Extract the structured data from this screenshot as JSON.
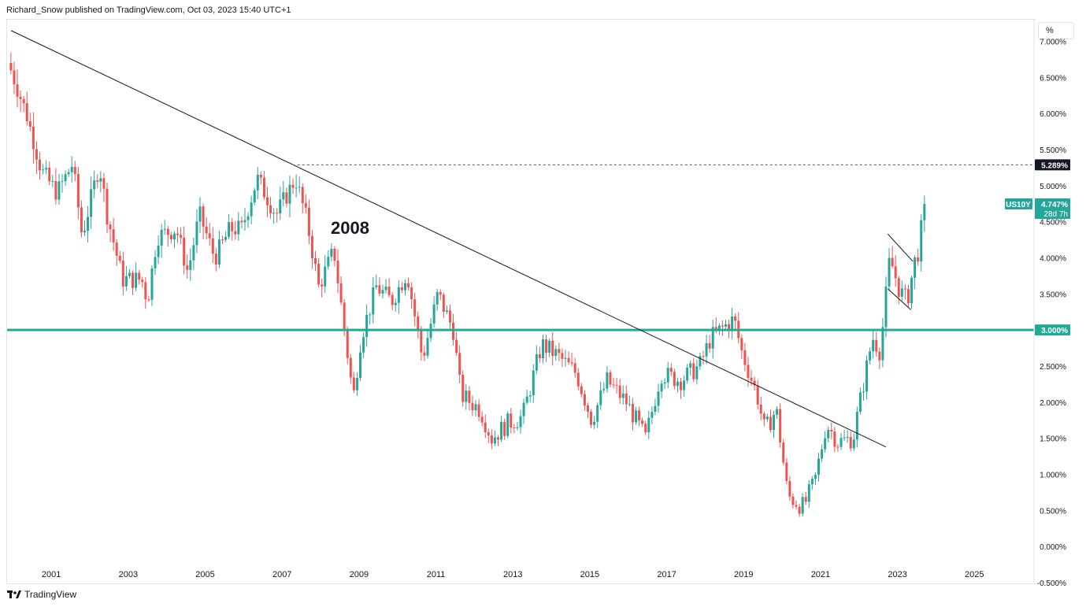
{
  "header": {
    "publisher_line": "Richard_Snow published on TradingView.com, Oct 03, 2023 15:40 UTC+1"
  },
  "toolbar": {
    "percent_label": "%"
  },
  "footer": {
    "brand": "TradingView"
  },
  "colors": {
    "up": "#26a69a",
    "down": "#ef5350",
    "support_line": "#22ab94",
    "text": "#131722",
    "grid_border": "#e0e3eb"
  },
  "chart_data": {
    "type": "candlestick",
    "symbol": "US10Y",
    "interval": "monthly",
    "y_axis": {
      "unit": "%",
      "ticks": [
        "7.000%",
        "6.500%",
        "6.000%",
        "5.500%",
        "5.000%",
        "4.500%",
        "4.000%",
        "3.500%",
        "3.000%",
        "2.500%",
        "2.000%",
        "1.500%",
        "1.000%",
        "0.500%",
        "0.000%",
        "-0.500%"
      ],
      "range": [
        -0.5,
        7.3
      ]
    },
    "x_axis": {
      "ticks": [
        "2001",
        "2003",
        "2005",
        "2007",
        "2009",
        "2011",
        "2013",
        "2015",
        "2017",
        "2019",
        "2021",
        "2023",
        "2025"
      ],
      "range": [
        1999.9,
        2026.6
      ]
    },
    "annotation_text": "2008",
    "horizontal_level": {
      "value": 3.0,
      "label": "3.000%"
    },
    "dashed_level": {
      "value": 5.289,
      "label": "5.289%",
      "from_x": 2007.45
    },
    "last_price": {
      "value": 4.747,
      "label": "4.747%",
      "symbol_label": "US10Y",
      "countdown": "28d 7h"
    },
    "trendline": {
      "from": [
        2000.0,
        7.15
      ],
      "to": [
        2022.75,
        1.38
      ]
    },
    "wedge": {
      "upper": [
        [
          2022.8,
          4.33
        ],
        [
          2023.45,
          3.95
        ]
      ],
      "lower": [
        [
          2022.8,
          3.57
        ],
        [
          2023.4,
          3.28
        ]
      ]
    },
    "anchors": [
      [
        2000.0,
        6.6
      ],
      [
        2000.4,
        6.0
      ],
      [
        2000.8,
        5.2
      ],
      [
        2001.2,
        4.9
      ],
      [
        2001.6,
        5.3
      ],
      [
        2001.85,
        4.3
      ],
      [
        2002.3,
        5.3
      ],
      [
        2002.5,
        4.6
      ],
      [
        2002.9,
        3.7
      ],
      [
        2003.4,
        3.7
      ],
      [
        2003.55,
        3.4
      ],
      [
        2003.8,
        4.3
      ],
      [
        2004.3,
        4.4
      ],
      [
        2004.6,
        3.8
      ],
      [
        2004.9,
        4.6
      ],
      [
        2005.3,
        4.0
      ],
      [
        2005.7,
        4.4
      ],
      [
        2006.0,
        4.4
      ],
      [
        2006.4,
        5.1
      ],
      [
        2006.9,
        4.6
      ],
      [
        2007.4,
        5.1
      ],
      [
        2007.7,
        4.5
      ],
      [
        2008.0,
        3.6
      ],
      [
        2008.4,
        4.1
      ],
      [
        2008.9,
        2.05
      ],
      [
        2009.1,
        2.9
      ],
      [
        2009.5,
        3.6
      ],
      [
        2009.9,
        3.4
      ],
      [
        2010.3,
        3.8
      ],
      [
        2010.7,
        2.6
      ],
      [
        2011.1,
        3.5
      ],
      [
        2011.5,
        3.0
      ],
      [
        2011.7,
        2.1
      ],
      [
        2012.2,
        1.9
      ],
      [
        2012.5,
        1.5
      ],
      [
        2012.9,
        1.7
      ],
      [
        2013.3,
        1.8
      ],
      [
        2013.8,
        2.8
      ],
      [
        2014.2,
        2.65
      ],
      [
        2014.7,
        2.4
      ],
      [
        2015.1,
        1.75
      ],
      [
        2015.5,
        2.3
      ],
      [
        2016.0,
        2.0
      ],
      [
        2016.5,
        1.5
      ],
      [
        2016.9,
        2.4
      ],
      [
        2017.4,
        2.3
      ],
      [
        2017.9,
        2.5
      ],
      [
        2018.2,
        2.9
      ],
      [
        2018.8,
        3.15
      ],
      [
        2019.0,
        2.7
      ],
      [
        2019.4,
        2.1
      ],
      [
        2019.6,
        1.6
      ],
      [
        2019.9,
        1.9
      ],
      [
        2020.2,
        0.7
      ],
      [
        2020.6,
        0.55
      ],
      [
        2020.9,
        0.9
      ],
      [
        2021.2,
        1.7
      ],
      [
        2021.5,
        1.45
      ],
      [
        2021.9,
        1.5
      ],
      [
        2022.0,
        1.8
      ],
      [
        2022.4,
        2.9
      ],
      [
        2022.6,
        2.7
      ],
      [
        2022.85,
        4.0
      ],
      [
        2023.1,
        3.55
      ],
      [
        2023.3,
        3.4
      ],
      [
        2023.5,
        3.95
      ],
      [
        2023.6,
        4.1
      ],
      [
        2023.75,
        4.747
      ]
    ]
  }
}
